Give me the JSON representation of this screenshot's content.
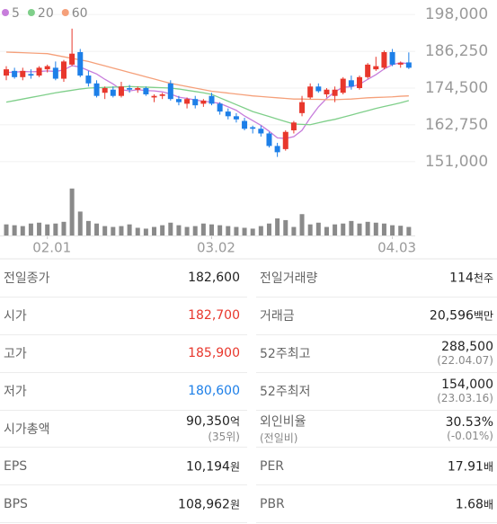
{
  "chart_data": {
    "type": "candlestick",
    "up_color": "#e8372c",
    "down_color": "#1d7fe8",
    "categories": [
      null,
      null,
      null,
      null,
      null,
      "02.01",
      null,
      null,
      null,
      null,
      null,
      null,
      null,
      null,
      null,
      null,
      null,
      null,
      null,
      null,
      null,
      null,
      null,
      null,
      null,
      "03.02",
      null,
      null,
      null,
      null,
      null,
      null,
      null,
      null,
      null,
      null,
      null,
      null,
      null,
      null,
      null,
      null,
      null,
      null,
      null,
      null,
      null,
      "04.03",
      null,
      null
    ],
    "open": [
      178500,
      180000,
      178000,
      179000,
      178500,
      180500,
      181000,
      177500,
      182000,
      186000,
      178500,
      176000,
      173000,
      174000,
      172000,
      174500,
      174000,
      174500,
      171500,
      172000,
      176000,
      171000,
      169500,
      171000,
      169500,
      172000,
      169500,
      167000,
      165500,
      164000,
      162000,
      161500,
      160000,
      156000,
      155000,
      161000,
      166500,
      171500,
      175000,
      172500,
      172000,
      173000,
      177000,
      174500,
      178000,
      180500,
      181000,
      186000,
      182000,
      182700
    ],
    "high": [
      181500,
      181000,
      181000,
      180500,
      181500,
      182000,
      183000,
      183500,
      193500,
      187000,
      180000,
      177000,
      175000,
      175000,
      176500,
      175500,
      175000,
      175000,
      172500,
      173000,
      177000,
      172000,
      171500,
      172000,
      171000,
      173000,
      170000,
      168000,
      166500,
      165000,
      162500,
      162500,
      160500,
      157000,
      161000,
      164000,
      172000,
      176000,
      176000,
      174500,
      175000,
      178000,
      178500,
      178500,
      182500,
      184500,
      186500,
      187000,
      183000,
      185900
    ],
    "low": [
      177000,
      177500,
      177000,
      177500,
      178000,
      179500,
      177000,
      176500,
      181500,
      178000,
      175000,
      171500,
      171000,
      171500,
      171500,
      173000,
      173000,
      172000,
      170000,
      171000,
      170500,
      169000,
      168000,
      168000,
      168500,
      169000,
      166000,
      164500,
      163500,
      161000,
      160000,
      159000,
      155500,
      152500,
      154500,
      160000,
      165500,
      171000,
      173000,
      171500,
      170000,
      172500,
      174000,
      174000,
      177500,
      180000,
      180500,
      181500,
      181000,
      180600
    ],
    "close": [
      180500,
      178000,
      180000,
      178500,
      181000,
      181500,
      177500,
      183000,
      185500,
      178500,
      176000,
      172000,
      174500,
      172000,
      175000,
      174000,
      174500,
      172500,
      172000,
      172500,
      171000,
      170000,
      171000,
      169000,
      170500,
      169500,
      167000,
      165500,
      164500,
      161500,
      161500,
      160000,
      156000,
      154000,
      160500,
      163500,
      170000,
      175000,
      173500,
      174000,
      174000,
      177500,
      175000,
      178000,
      182000,
      181500,
      186000,
      182000,
      182600,
      181000
    ],
    "ylim": [
      147500,
      201500
    ],
    "yticks": [
      {
        "value": 198000,
        "label": "198,000"
      },
      {
        "value": 186250,
        "label": "186,250"
      },
      {
        "value": 174500,
        "label": "174,500"
      },
      {
        "value": 162750,
        "label": "162,750"
      },
      {
        "value": 151000,
        "label": "151,000"
      }
    ],
    "grid": true,
    "series": [
      {
        "name": "5",
        "color": "#c77ddb",
        "values": [
          179500,
          179600,
          179800,
          179700,
          179800,
          180000,
          179800,
          180300,
          181700,
          181200,
          180100,
          179000,
          177300,
          175800,
          174000,
          173600,
          174000,
          173700,
          173600,
          173300,
          172600,
          171600,
          171200,
          170700,
          170300,
          170000,
          169600,
          168500,
          167400,
          165600,
          164100,
          162600,
          160700,
          158600,
          158400,
          159000,
          161000,
          165000,
          168500,
          171200,
          173300,
          174800,
          174900,
          175700,
          177300,
          178800,
          180600,
          182000,
          182600,
          182300
        ]
      },
      {
        "name": "20",
        "color": "#7fcf8a",
        "values": [
          170000,
          170500,
          171000,
          171500,
          172000,
          172500,
          173000,
          173400,
          173800,
          174200,
          174500,
          174600,
          174700,
          174800,
          174900,
          175000,
          174900,
          174800,
          174700,
          174600,
          174500,
          174200,
          173800,
          173400,
          173000,
          172500,
          171400,
          170300,
          169200,
          168100,
          167000,
          166200,
          165400,
          164600,
          163800,
          163000,
          162900,
          162800,
          163400,
          164000,
          164500,
          165200,
          165900,
          166600,
          167300,
          168000,
          168600,
          169200,
          169800,
          170500
        ]
      },
      {
        "name": "60",
        "color": "#f5a07a",
        "values": [
          186000,
          185900,
          185800,
          185700,
          185600,
          185500,
          185000,
          184500,
          184000,
          183500,
          183000,
          182300,
          181600,
          180900,
          180200,
          179500,
          178800,
          178100,
          177400,
          176700,
          176000,
          175500,
          175000,
          174500,
          174000,
          173500,
          173200,
          172900,
          172600,
          172300,
          172000,
          171800,
          171600,
          171400,
          171200,
          171000,
          171000,
          170900,
          170900,
          170800,
          170800,
          170900,
          171000,
          171200,
          171400,
          171500,
          171600,
          171700,
          171900,
          172000
        ]
      }
    ],
    "volume": {
      "color": "#8a8a8a",
      "ylim": [
        0,
        600
      ],
      "values": [
        130,
        120,
        110,
        140,
        150,
        130,
        140,
        160,
        550,
        280,
        170,
        140,
        110,
        100,
        110,
        130,
        90,
        80,
        100,
        120,
        150,
        120,
        100,
        110,
        140,
        130,
        120,
        110,
        100,
        90,
        80,
        110,
        140,
        200,
        180,
        100,
        250,
        130,
        150,
        100,
        130,
        140,
        170,
        140,
        160,
        150,
        140,
        120,
        114,
        100
      ]
    }
  },
  "stats": {
    "rows": [
      {
        "left": {
          "label": "전일종가",
          "value": "182,600"
        },
        "right": {
          "label": "전일거래량",
          "value": "114",
          "unit": "천주"
        }
      },
      {
        "left": {
          "label": "시가",
          "value": "182,700",
          "color": "#e8372c"
        },
        "right": {
          "label": "거래금",
          "value": "20,596",
          "unit": "백만"
        }
      },
      {
        "left": {
          "label": "고가",
          "value": "185,900",
          "color": "#e8372c"
        },
        "right": {
          "label": "52주최고",
          "value": "288,500",
          "sub": "(22.04.07)"
        }
      },
      {
        "left": {
          "label": "저가",
          "value": "180,600",
          "color": "#1d7fe8"
        },
        "right": {
          "label": "52주최저",
          "value": "154,000",
          "sub": "(23.03.16)"
        }
      },
      {
        "left": {
          "label": "시가총액",
          "value": "90,350",
          "unit": "억",
          "sub": "(35위)"
        },
        "right": {
          "label": "외인비율",
          "sublabel": "(전일비)",
          "value": "30.53%",
          "sub": "(-0.01%)"
        }
      },
      {
        "left": {
          "label": "EPS",
          "value": "10,194",
          "unit": "원"
        },
        "right": {
          "label": "PER",
          "value": "17.91",
          "unit": "배"
        }
      },
      {
        "left": {
          "label": "BPS",
          "value": "108,962",
          "unit": "원"
        },
        "right": {
          "label": "PBR",
          "value": "1.68",
          "unit": "배"
        }
      }
    ]
  }
}
